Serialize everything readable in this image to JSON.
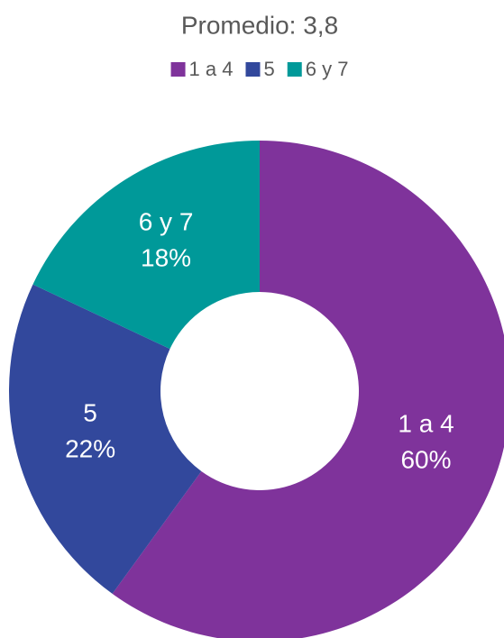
{
  "chart_data": {
    "type": "donut",
    "title": "Promedio: 3,8",
    "categories": [
      "1 a 4",
      "5",
      "6 y 7"
    ],
    "values": [
      60,
      22,
      18
    ],
    "value_labels": [
      "60%",
      "22%",
      "18%"
    ],
    "colors": [
      "#7F339B",
      "#32489C",
      "#009999"
    ],
    "legend": "top"
  }
}
